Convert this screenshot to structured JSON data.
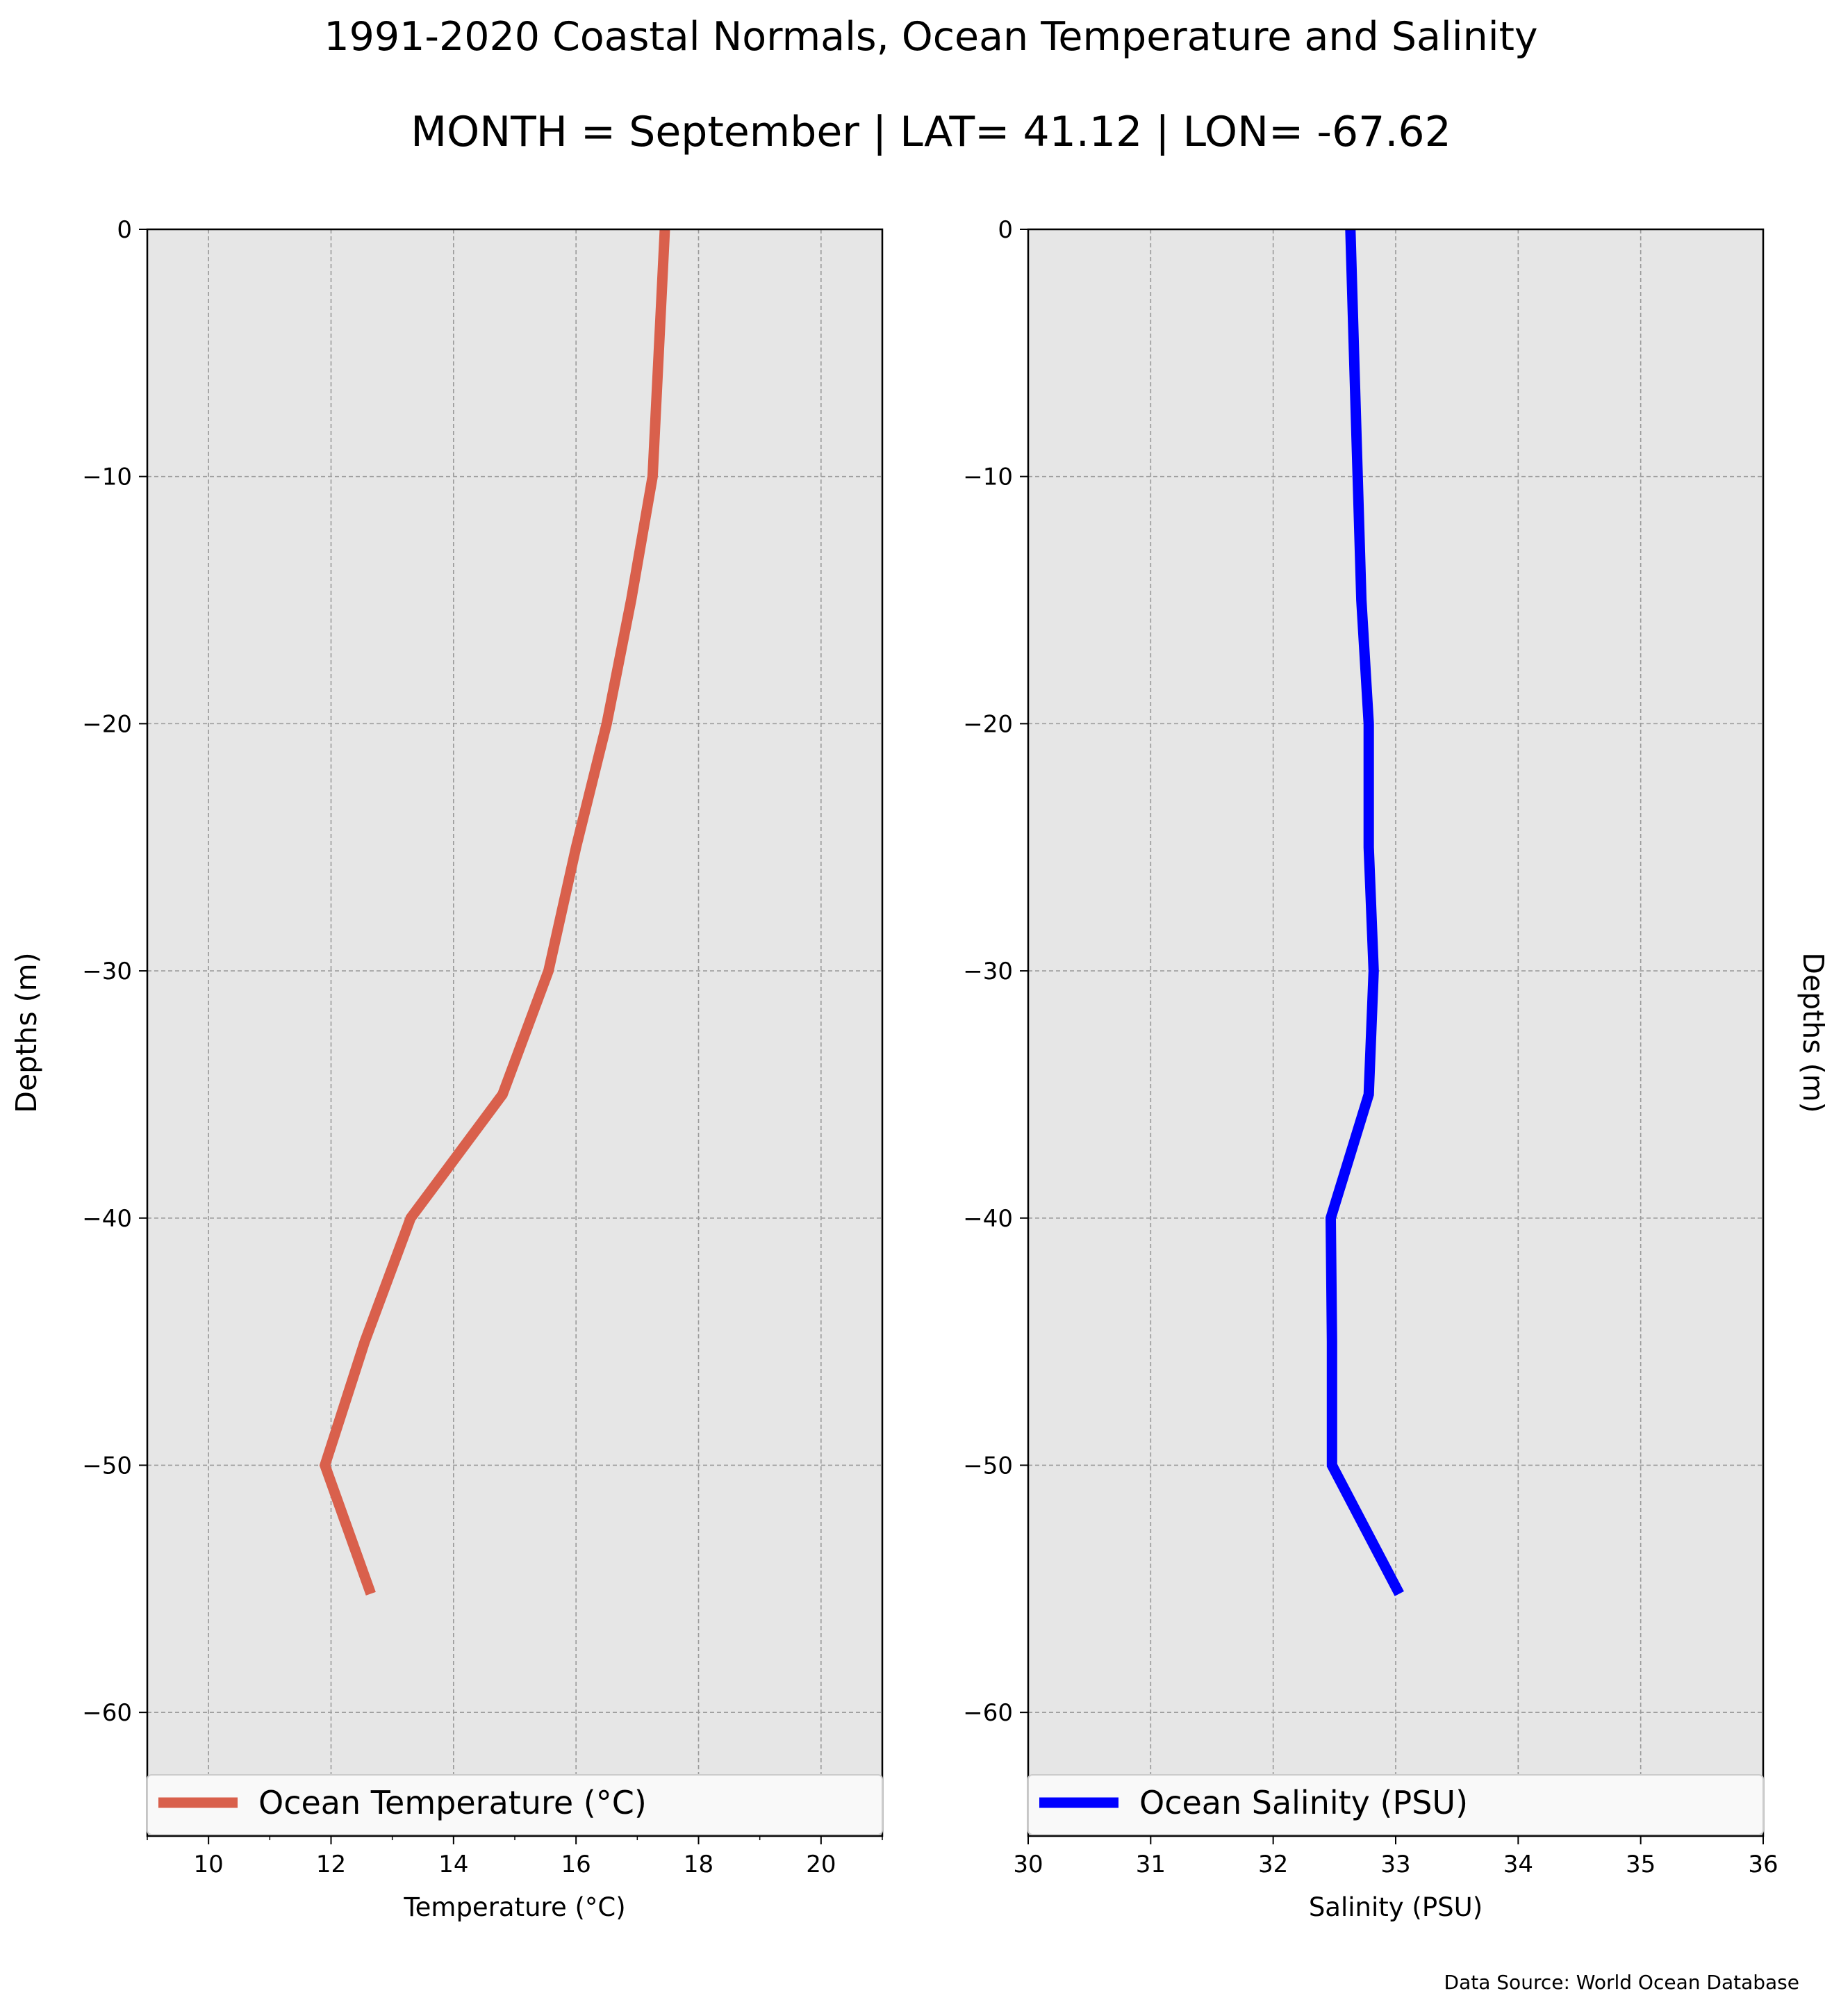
{
  "figure": {
    "title": "1991-2020 Coastal Normals, Ocean Temperature and Salinity",
    "subtitle": "MONTH = September | LAT= 41.12 | LON= -67.62",
    "source": "Data Source: World Ocean Database"
  },
  "chart_data": [
    {
      "type": "line",
      "orientation": "vertical-profile",
      "xlabel": "Temperature (°C)",
      "ylabel": "Depths (m)",
      "xlim": [
        9,
        21
      ],
      "ylim": [
        -65,
        0
      ],
      "xticks": [
        10,
        12,
        14,
        16,
        18,
        20
      ],
      "yticks": [
        0,
        -10,
        -20,
        -30,
        -40,
        -50,
        -60
      ],
      "grid": true,
      "legend_placement": "bottom",
      "series": [
        {
          "name": "Ocean Temperature (°C)",
          "color": "#d9604c",
          "points": [
            {
              "x": 17.45,
              "y": 0
            },
            {
              "x": 17.35,
              "y": -5
            },
            {
              "x": 17.25,
              "y": -10
            },
            {
              "x": 16.9,
              "y": -15
            },
            {
              "x": 16.5,
              "y": -20
            },
            {
              "x": 16.0,
              "y": -25
            },
            {
              "x": 15.55,
              "y": -30
            },
            {
              "x": 14.8,
              "y": -35
            },
            {
              "x": 13.3,
              "y": -40
            },
            {
              "x": 12.55,
              "y": -45
            },
            {
              "x": 11.9,
              "y": -50
            },
            {
              "x": 12.65,
              "y": -55.2
            }
          ]
        }
      ]
    },
    {
      "type": "line",
      "orientation": "vertical-profile",
      "xlabel": "Salinity (PSU)",
      "ylabel": "Depths (m)",
      "xlim": [
        30,
        36
      ],
      "ylim": [
        -65,
        0
      ],
      "xticks": [
        30,
        31,
        32,
        33,
        34,
        35,
        36
      ],
      "yticks": [
        0,
        -10,
        -20,
        -30,
        -40,
        -50,
        -60
      ],
      "grid": true,
      "legend_placement": "bottom",
      "series": [
        {
          "name": "Ocean Salinity (PSU)",
          "color": "#0000ff",
          "points": [
            {
              "x": 32.63,
              "y": 0
            },
            {
              "x": 32.66,
              "y": -5
            },
            {
              "x": 32.69,
              "y": -10
            },
            {
              "x": 32.72,
              "y": -15
            },
            {
              "x": 32.78,
              "y": -20
            },
            {
              "x": 32.78,
              "y": -25
            },
            {
              "x": 32.82,
              "y": -30
            },
            {
              "x": 32.78,
              "y": -35
            },
            {
              "x": 32.47,
              "y": -40
            },
            {
              "x": 32.48,
              "y": -45
            },
            {
              "x": 32.48,
              "y": -50
            },
            {
              "x": 33.03,
              "y": -55.2
            }
          ]
        }
      ]
    }
  ]
}
